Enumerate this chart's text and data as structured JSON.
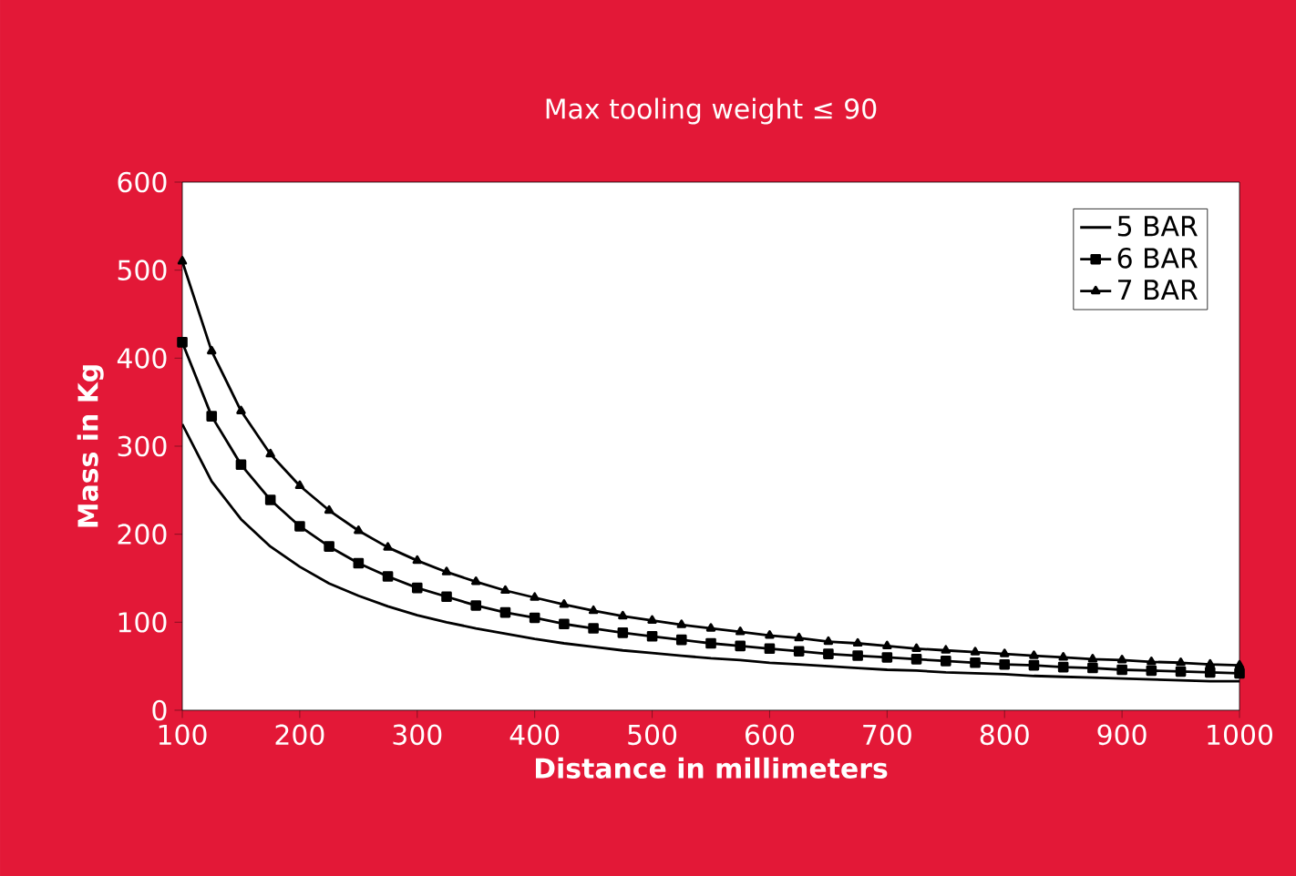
{
  "chart_data": {
    "type": "line",
    "subtitle": "Max tooling weight  ≤ 90",
    "xlabel": "Distance in millimeters",
    "ylabel": "Mass in Kg",
    "x": [
      100,
      125,
      150,
      175,
      200,
      225,
      250,
      275,
      300,
      325,
      350,
      375,
      400,
      425,
      450,
      475,
      500,
      525,
      550,
      575,
      600,
      625,
      650,
      675,
      700,
      725,
      750,
      775,
      800,
      825,
      850,
      875,
      900,
      925,
      950,
      975,
      1000
    ],
    "series": [
      {
        "name": "5 BAR",
        "color": "#000000",
        "marker": "none",
        "values": [
          325,
          260,
          217,
          186,
          163,
          144,
          130,
          118,
          108,
          100,
          93,
          87,
          81,
          76,
          72,
          68,
          65,
          62,
          59,
          57,
          54,
          52,
          50,
          48,
          46,
          45,
          43,
          42,
          41,
          39,
          38,
          37,
          36,
          35,
          34,
          33,
          33
        ]
      },
      {
        "name": "6 BAR",
        "color": "#000000",
        "marker": "square",
        "values": [
          418,
          334,
          279,
          239,
          209,
          186,
          167,
          152,
          139,
          129,
          119,
          111,
          105,
          98,
          93,
          88,
          84,
          80,
          76,
          73,
          70,
          67,
          64,
          62,
          60,
          58,
          56,
          54,
          52,
          51,
          49,
          48,
          46,
          45,
          44,
          43,
          42
        ]
      },
      {
        "name": "7 BAR",
        "color": "#000000",
        "marker": "triangle",
        "values": [
          510,
          408,
          340,
          291,
          255,
          227,
          204,
          185,
          170,
          157,
          146,
          136,
          128,
          120,
          113,
          107,
          102,
          97,
          93,
          89,
          85,
          82,
          78,
          76,
          73,
          70,
          68,
          66,
          64,
          62,
          60,
          58,
          57,
          55,
          54,
          52,
          51
        ]
      }
    ],
    "xlim": [
      100,
      1000
    ],
    "xticks": [
      100,
      200,
      300,
      400,
      500,
      600,
      700,
      800,
      900,
      1000
    ],
    "ylim": [
      0,
      600
    ],
    "yticks": [
      0,
      100,
      200,
      300,
      400,
      500,
      600
    ],
    "grid": false,
    "legend": "top right",
    "line_style": "solid"
  }
}
